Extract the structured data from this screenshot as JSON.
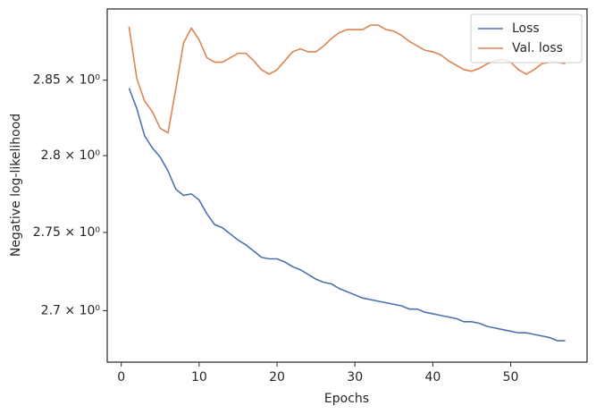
{
  "chart_data": {
    "type": "line",
    "xlabel": "Epochs",
    "ylabel": "Negative log-likelihood",
    "x": [
      1,
      2,
      3,
      4,
      5,
      6,
      7,
      8,
      9,
      10,
      11,
      12,
      13,
      14,
      15,
      16,
      17,
      18,
      19,
      20,
      21,
      22,
      23,
      24,
      25,
      26,
      27,
      28,
      29,
      30,
      31,
      32,
      33,
      34,
      35,
      36,
      37,
      38,
      39,
      40,
      41,
      42,
      43,
      44,
      45,
      46,
      47,
      48,
      49,
      50,
      51,
      52,
      53,
      54,
      55,
      56,
      57
    ],
    "series": [
      {
        "name": "Loss",
        "color": "#4c72b0",
        "values": [
          2.8447,
          2.831,
          2.813,
          2.805,
          2.799,
          2.79,
          2.778,
          2.774,
          2.775,
          2.771,
          2.762,
          2.755,
          2.753,
          2.749,
          2.745,
          2.742,
          2.738,
          2.734,
          2.733,
          2.733,
          2.731,
          2.728,
          2.726,
          2.723,
          2.72,
          2.718,
          2.717,
          2.714,
          2.712,
          2.71,
          2.708,
          2.707,
          2.706,
          2.705,
          2.704,
          2.703,
          2.701,
          2.701,
          2.699,
          2.698,
          2.697,
          2.696,
          2.695,
          2.693,
          2.693,
          2.692,
          2.69,
          2.689,
          2.688,
          2.687,
          2.686,
          2.686,
          2.685,
          2.684,
          2.683,
          2.681,
          2.681
        ]
      },
      {
        "name": "Val. loss",
        "color": "#dd8452",
        "values": [
          2.886,
          2.851,
          2.836,
          2.829,
          2.818,
          2.815,
          2.844,
          2.875,
          2.885,
          2.877,
          2.865,
          2.862,
          2.862,
          2.865,
          2.868,
          2.868,
          2.863,
          2.857,
          2.854,
          2.857,
          2.863,
          2.869,
          2.871,
          2.869,
          2.869,
          2.873,
          2.878,
          2.882,
          2.884,
          2.884,
          2.884,
          2.887,
          2.887,
          2.884,
          2.883,
          2.88,
          2.876,
          2.873,
          2.87,
          2.869,
          2.867,
          2.863,
          2.86,
          2.857,
          2.856,
          2.858,
          2.861,
          2.863,
          2.864,
          2.862,
          2.857,
          2.854,
          2.857,
          2.861,
          2.862,
          2.862,
          2.861
        ]
      }
    ],
    "xlim": [
      -1.8,
      59.8
    ],
    "xticks": [
      0,
      10,
      20,
      30,
      40,
      50
    ],
    "ylim": [
      2.6676,
      2.898
    ],
    "log_y": true,
    "yticks": [
      {
        "value": 2.7,
        "label": "2.7 × 10⁰"
      },
      {
        "value": 2.75,
        "label": "2.75 × 10⁰"
      },
      {
        "value": 2.8,
        "label": "2.8 × 10⁰"
      },
      {
        "value": 2.85,
        "label": "2.85 × 10⁰"
      }
    ],
    "legend": "upper right"
  }
}
